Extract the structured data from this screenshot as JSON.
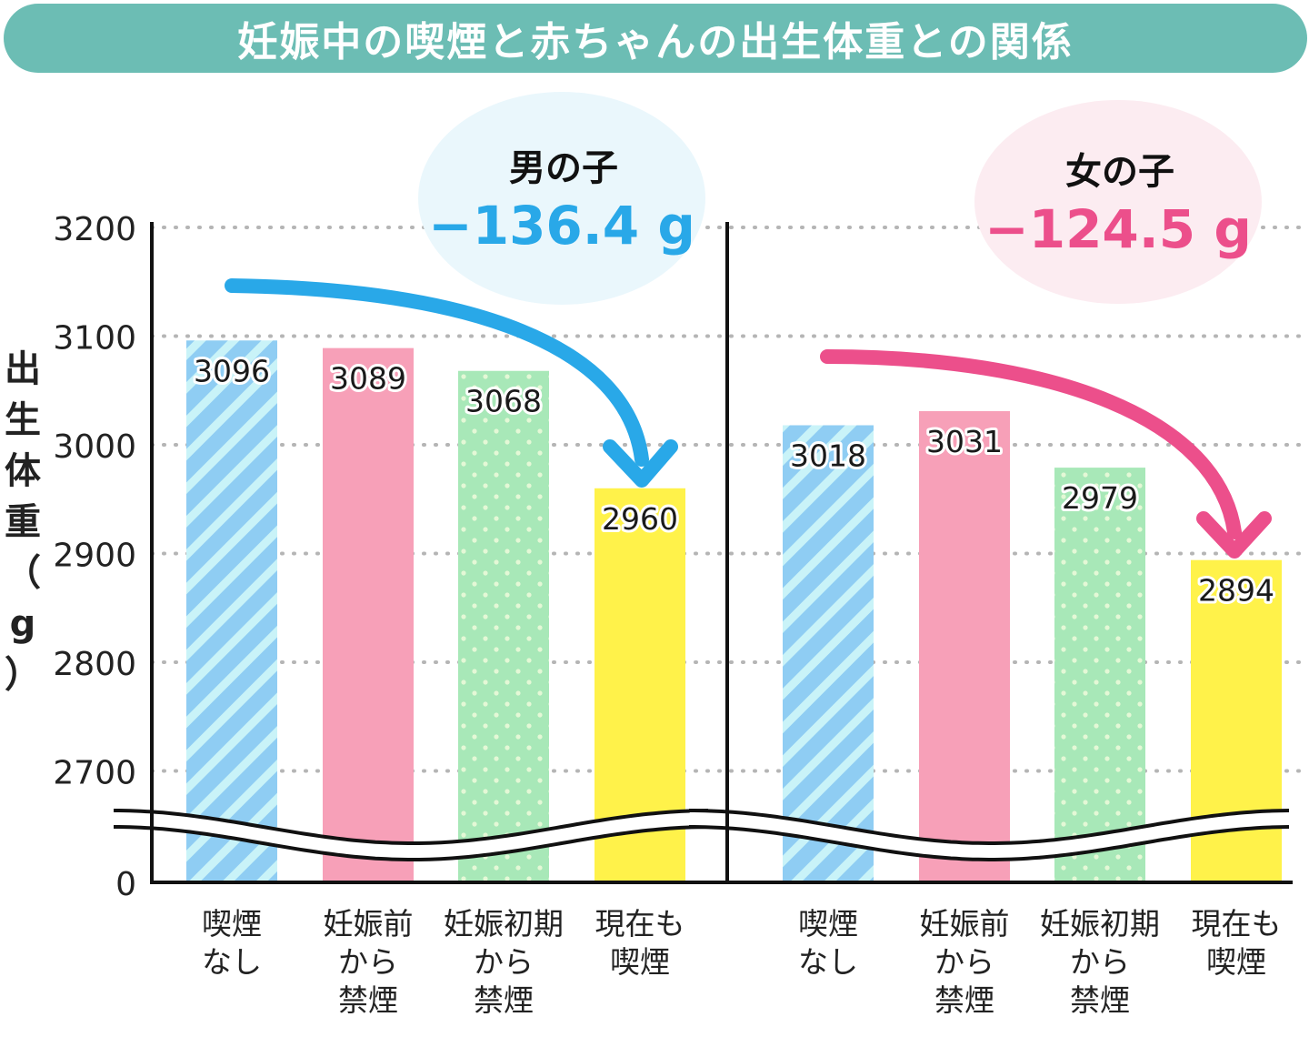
{
  "title": "妊娠中の喫煙と赤ちゃんの出生体重との関係",
  "y_axis_label_chars": [
    "出",
    "生",
    "体",
    "重"
  ],
  "y_axis_unit": "g",
  "colors": {
    "banner": "#6cbdb4",
    "no_smoking": "#8fcdf3",
    "quit_before": "#f7a0b8",
    "quit_early": "#a8e8b8",
    "still_smoking": "#fff24a",
    "boy_accent": "#29a8e8",
    "girl_accent": "#ec4f8b",
    "boy_bubble": "#eaf7fc",
    "girl_bubble": "#fcecf1"
  },
  "chart_data": [
    {
      "type": "bar",
      "panel": "男の子",
      "diff_label": "−136.4 g",
      "categories": [
        "喫煙\nなし",
        "妊娠前\nから\n禁煙",
        "妊娠初期\nから\n禁煙",
        "現在も\n喫煙"
      ],
      "values": [
        3096,
        3089,
        3068,
        2960
      ],
      "ylabel": "出生体重（g）",
      "yticks": [
        0,
        2700,
        2800,
        2900,
        3000,
        3100,
        3200
      ],
      "ylim": [
        2650,
        3200
      ],
      "axis_break": true,
      "grid": true
    },
    {
      "type": "bar",
      "panel": "女の子",
      "diff_label": "−124.5 g",
      "categories": [
        "喫煙\nなし",
        "妊娠前\nから\n禁煙",
        "妊娠初期\nから\n禁煙",
        "現在も\n喫煙"
      ],
      "values": [
        3018,
        3031,
        2979,
        2894
      ],
      "ylabel": "出生体重（g）",
      "yticks": [
        0,
        2700,
        2800,
        2900,
        3000,
        3100,
        3200
      ],
      "ylim": [
        2650,
        3200
      ],
      "axis_break": true,
      "grid": true
    }
  ]
}
